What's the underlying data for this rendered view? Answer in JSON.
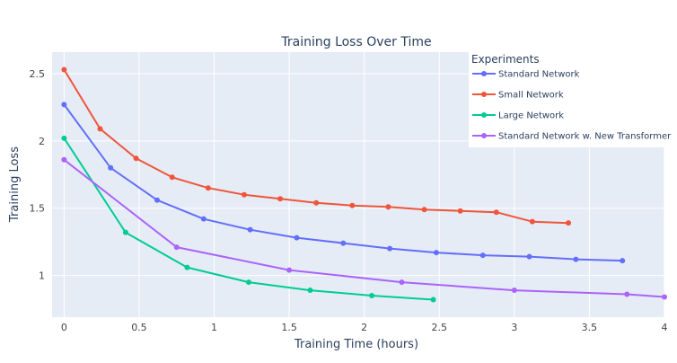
{
  "chart_data": {
    "type": "line",
    "title": "Training Loss Over Time",
    "xlabel": "Training Time (hours)",
    "ylabel": "Training Loss",
    "xlim": [
      -0.08,
      4.0
    ],
    "ylim": [
      0.69,
      2.66
    ],
    "x_ticks": [
      0,
      0.5,
      1,
      1.5,
      2,
      2.5,
      3,
      3.5,
      4
    ],
    "x_tick_labels": [
      "0",
      "0.5",
      "1",
      "1.5",
      "2",
      "2.5",
      "3",
      "3.5",
      "4"
    ],
    "y_ticks": [
      1,
      1.5,
      2,
      2.5
    ],
    "y_tick_labels": [
      "1",
      "1.5",
      "2",
      "2.5"
    ],
    "grid": true,
    "legend": {
      "title": "Experiments",
      "placement": "top-right"
    },
    "series": [
      {
        "name": "Standard Network",
        "color": "#636efa",
        "x": [
          0,
          0.31,
          0.62,
          0.93,
          1.24,
          1.55,
          1.86,
          2.17,
          2.48,
          2.79,
          3.1,
          3.41,
          3.72
        ],
        "y": [
          2.27,
          1.8,
          1.56,
          1.42,
          1.34,
          1.28,
          1.24,
          1.2,
          1.17,
          1.15,
          1.14,
          1.12,
          1.11
        ]
      },
      {
        "name": "Small Network",
        "color": "#ef553b",
        "x": [
          0,
          0.24,
          0.48,
          0.72,
          0.96,
          1.2,
          1.44,
          1.68,
          1.92,
          2.16,
          2.4,
          2.64,
          2.88,
          3.12,
          3.36
        ],
        "y": [
          2.53,
          2.09,
          1.87,
          1.73,
          1.65,
          1.6,
          1.57,
          1.54,
          1.52,
          1.51,
          1.49,
          1.48,
          1.47,
          1.4,
          1.39
        ]
      },
      {
        "name": "Large Network",
        "color": "#00cc96",
        "x": [
          0,
          0.41,
          0.82,
          1.23,
          1.64,
          2.05,
          2.46
        ],
        "y": [
          2.02,
          1.32,
          1.06,
          0.95,
          0.89,
          0.85,
          0.82
        ]
      },
      {
        "name": "Standard Network w. New Transformer",
        "color": "#ab63fa",
        "x": [
          0,
          0.75,
          1.5,
          2.25,
          3.0,
          3.75,
          4.0
        ],
        "y": [
          1.86,
          1.21,
          1.04,
          0.95,
          0.89,
          0.86,
          0.84
        ]
      }
    ]
  }
}
